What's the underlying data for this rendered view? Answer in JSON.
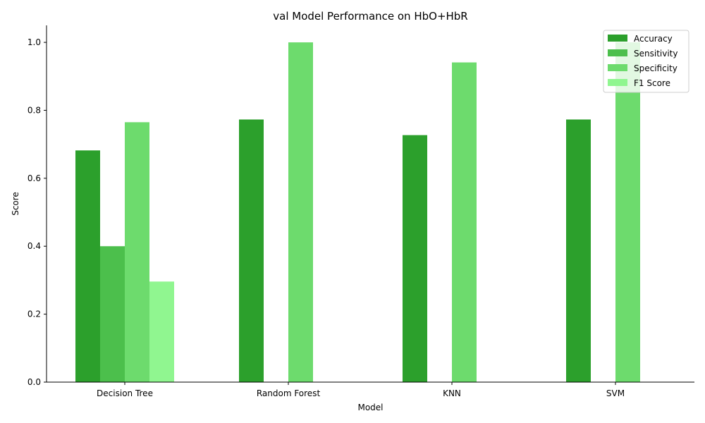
{
  "chart_data": {
    "type": "bar",
    "title": "val Model Performance on HbO+HbR",
    "xlabel": "Model",
    "ylabel": "Score",
    "ylim": [
      0,
      1.05
    ],
    "yticks": [
      0.0,
      0.2,
      0.4,
      0.6,
      0.8,
      1.0
    ],
    "ytick_labels": [
      "0.0",
      "0.2",
      "0.4",
      "0.6",
      "0.8",
      "1.0"
    ],
    "categories": [
      "Decision Tree",
      "Random Forest",
      "KNN",
      "SVM"
    ],
    "series": [
      {
        "name": "Accuracy",
        "color": "#2ca02c",
        "values": [
          0.682,
          0.773,
          0.727,
          0.773
        ]
      },
      {
        "name": "Sensitivity",
        "color": "#4cbf4c",
        "values": [
          0.4,
          0.0,
          0.0,
          0.0
        ]
      },
      {
        "name": "Specificity",
        "color": "#6ddb6d",
        "values": [
          0.765,
          1.0,
          0.941,
          1.0
        ]
      },
      {
        "name": "F1 Score",
        "color": "#90f690",
        "values": [
          0.296,
          0.0,
          0.0,
          0.0
        ]
      }
    ],
    "legend_position": "top-right",
    "grid": false
  }
}
